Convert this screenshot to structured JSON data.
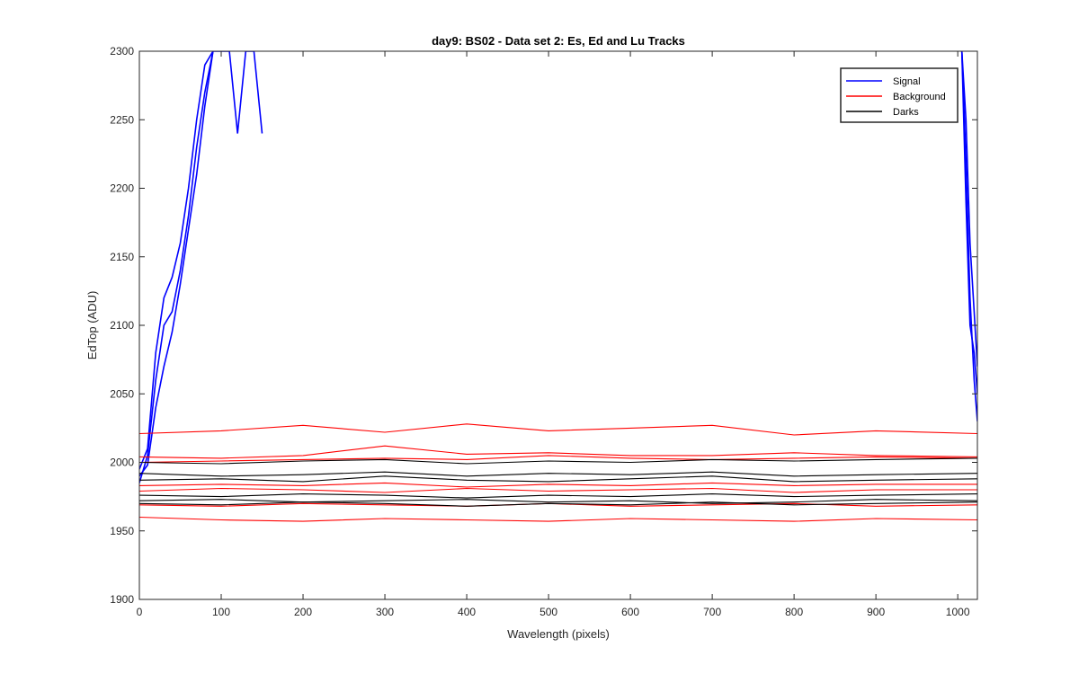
{
  "chart_data": {
    "type": "line",
    "title": "day9: BS02 - Data set 2: Es, Ed and Lu Tracks",
    "xlabel": "Wavelength (pixels)",
    "ylabel": "EdTop (ADU)",
    "xlim": [
      0,
      1024
    ],
    "ylim": [
      1900,
      2300
    ],
    "xticks": [
      0,
      100,
      200,
      300,
      400,
      500,
      600,
      700,
      800,
      900,
      1000
    ],
    "yticks": [
      1900,
      1950,
      2000,
      2050,
      2100,
      2150,
      2200,
      2250,
      2300
    ],
    "grid": false,
    "legend": {
      "placement": "top-right",
      "entries": [
        "Signal",
        "Background",
        "Darks"
      ]
    },
    "colors": {
      "Signal": "#0000ff",
      "Background": "#ff0000",
      "Darks": "#000000"
    },
    "series": [
      {
        "name": "Signal",
        "x": [
          0,
          10,
          20,
          30,
          40,
          50,
          60,
          70,
          80,
          90,
          100,
          110,
          120,
          130,
          140,
          150
        ],
        "y": [
          1985,
          2005,
          2060,
          2100,
          2110,
          2140,
          2180,
          2230,
          2270,
          2300,
          2300,
          2300,
          2240,
          2300,
          2300,
          2240
        ]
      },
      {
        "name": "Signal",
        "x": [
          0,
          10,
          20,
          30,
          40,
          50,
          60,
          70,
          80,
          90
        ],
        "y": [
          1990,
          1998,
          2040,
          2070,
          2095,
          2130,
          2170,
          2210,
          2260,
          2300
        ]
      },
      {
        "name": "Signal",
        "x": [
          0,
          10,
          20,
          30,
          40,
          50,
          60,
          70,
          80,
          90
        ],
        "y": [
          1995,
          2010,
          2080,
          2120,
          2135,
          2160,
          2200,
          2250,
          2290,
          2300
        ]
      },
      {
        "name": "Signal",
        "x": [
          1005,
          1010,
          1015,
          1020,
          1024
        ],
        "y": [
          2300,
          2220,
          2120,
          2060,
          2030
        ]
      },
      {
        "name": "Signal",
        "x": [
          1005,
          1010,
          1015,
          1020,
          1024
        ],
        "y": [
          2300,
          2190,
          2100,
          2080,
          2050
        ]
      },
      {
        "name": "Signal",
        "x": [
          1005,
          1010,
          1015,
          1020,
          1024
        ],
        "y": [
          2300,
          2250,
          2160,
          2110,
          2070
        ]
      },
      {
        "name": "Background",
        "x": [
          0,
          100,
          200,
          300,
          400,
          500,
          600,
          700,
          800,
          900,
          1024
        ],
        "y": [
          2021,
          2023,
          2027,
          2022,
          2028,
          2023,
          2025,
          2027,
          2020,
          2023,
          2021
        ]
      },
      {
        "name": "Background",
        "x": [
          0,
          100,
          200,
          300,
          400,
          500,
          600,
          700,
          800,
          900,
          1024
        ],
        "y": [
          2004,
          2003,
          2005,
          2012,
          2006,
          2007,
          2005,
          2005,
          2007,
          2005,
          2004
        ]
      },
      {
        "name": "Background",
        "x": [
          0,
          100,
          200,
          300,
          400,
          500,
          600,
          700,
          800,
          900,
          1024
        ],
        "y": [
          2000,
          2001,
          2002,
          2003,
          2002,
          2005,
          2003,
          2002,
          2003,
          2004,
          2003
        ]
      },
      {
        "name": "Background",
        "x": [
          0,
          100,
          200,
          300,
          400,
          500,
          600,
          700,
          800,
          900,
          1024
        ],
        "y": [
          1983,
          1984,
          1983,
          1985,
          1982,
          1984,
          1983,
          1985,
          1983,
          1984,
          1984
        ]
      },
      {
        "name": "Background",
        "x": [
          0,
          100,
          200,
          300,
          400,
          500,
          600,
          700,
          800,
          900,
          1024
        ],
        "y": [
          1979,
          1981,
          1980,
          1978,
          1981,
          1979,
          1980,
          1981,
          1978,
          1980,
          1980
        ]
      },
      {
        "name": "Background",
        "x": [
          0,
          100,
          200,
          300,
          400,
          500,
          600,
          700,
          800,
          900,
          1024
        ],
        "y": [
          1969,
          1968,
          1970,
          1969,
          1968,
          1970,
          1968,
          1969,
          1970,
          1968,
          1969
        ]
      },
      {
        "name": "Background",
        "x": [
          0,
          100,
          200,
          300,
          400,
          500,
          600,
          700,
          800,
          900,
          1024
        ],
        "y": [
          1960,
          1958,
          1957,
          1959,
          1958,
          1957,
          1959,
          1958,
          1957,
          1959,
          1958
        ]
      },
      {
        "name": "Darks",
        "x": [
          0,
          100,
          200,
          300,
          400,
          500,
          600,
          700,
          800,
          900,
          1024
        ],
        "y": [
          2000,
          1999,
          2001,
          2002,
          1999,
          2001,
          2000,
          2002,
          2001,
          2002,
          2003
        ]
      },
      {
        "name": "Darks",
        "x": [
          0,
          100,
          200,
          300,
          400,
          500,
          600,
          700,
          800,
          900,
          1024
        ],
        "y": [
          1992,
          1990,
          1991,
          1993,
          1990,
          1992,
          1991,
          1993,
          1990,
          1991,
          1992
        ]
      },
      {
        "name": "Darks",
        "x": [
          0,
          100,
          200,
          300,
          400,
          500,
          600,
          700,
          800,
          900,
          1024
        ],
        "y": [
          1987,
          1988,
          1986,
          1990,
          1987,
          1986,
          1988,
          1990,
          1986,
          1987,
          1988
        ]
      },
      {
        "name": "Darks",
        "x": [
          0,
          100,
          200,
          300,
          400,
          500,
          600,
          700,
          800,
          900,
          1024
        ],
        "y": [
          1976,
          1975,
          1977,
          1976,
          1974,
          1976,
          1975,
          1977,
          1975,
          1976,
          1977
        ]
      },
      {
        "name": "Darks",
        "x": [
          0,
          100,
          200,
          300,
          400,
          500,
          600,
          700,
          800,
          900,
          1024
        ],
        "y": [
          1972,
          1973,
          1971,
          1972,
          1973,
          1971,
          1972,
          1970,
          1971,
          1973,
          1972
        ]
      },
      {
        "name": "Darks",
        "x": [
          0,
          100,
          200,
          300,
          400,
          500,
          600,
          700,
          800,
          900,
          1024
        ],
        "y": [
          1970,
          1969,
          1971,
          1970,
          1968,
          1970,
          1969,
          1971,
          1969,
          1970,
          1971
        ]
      }
    ]
  }
}
